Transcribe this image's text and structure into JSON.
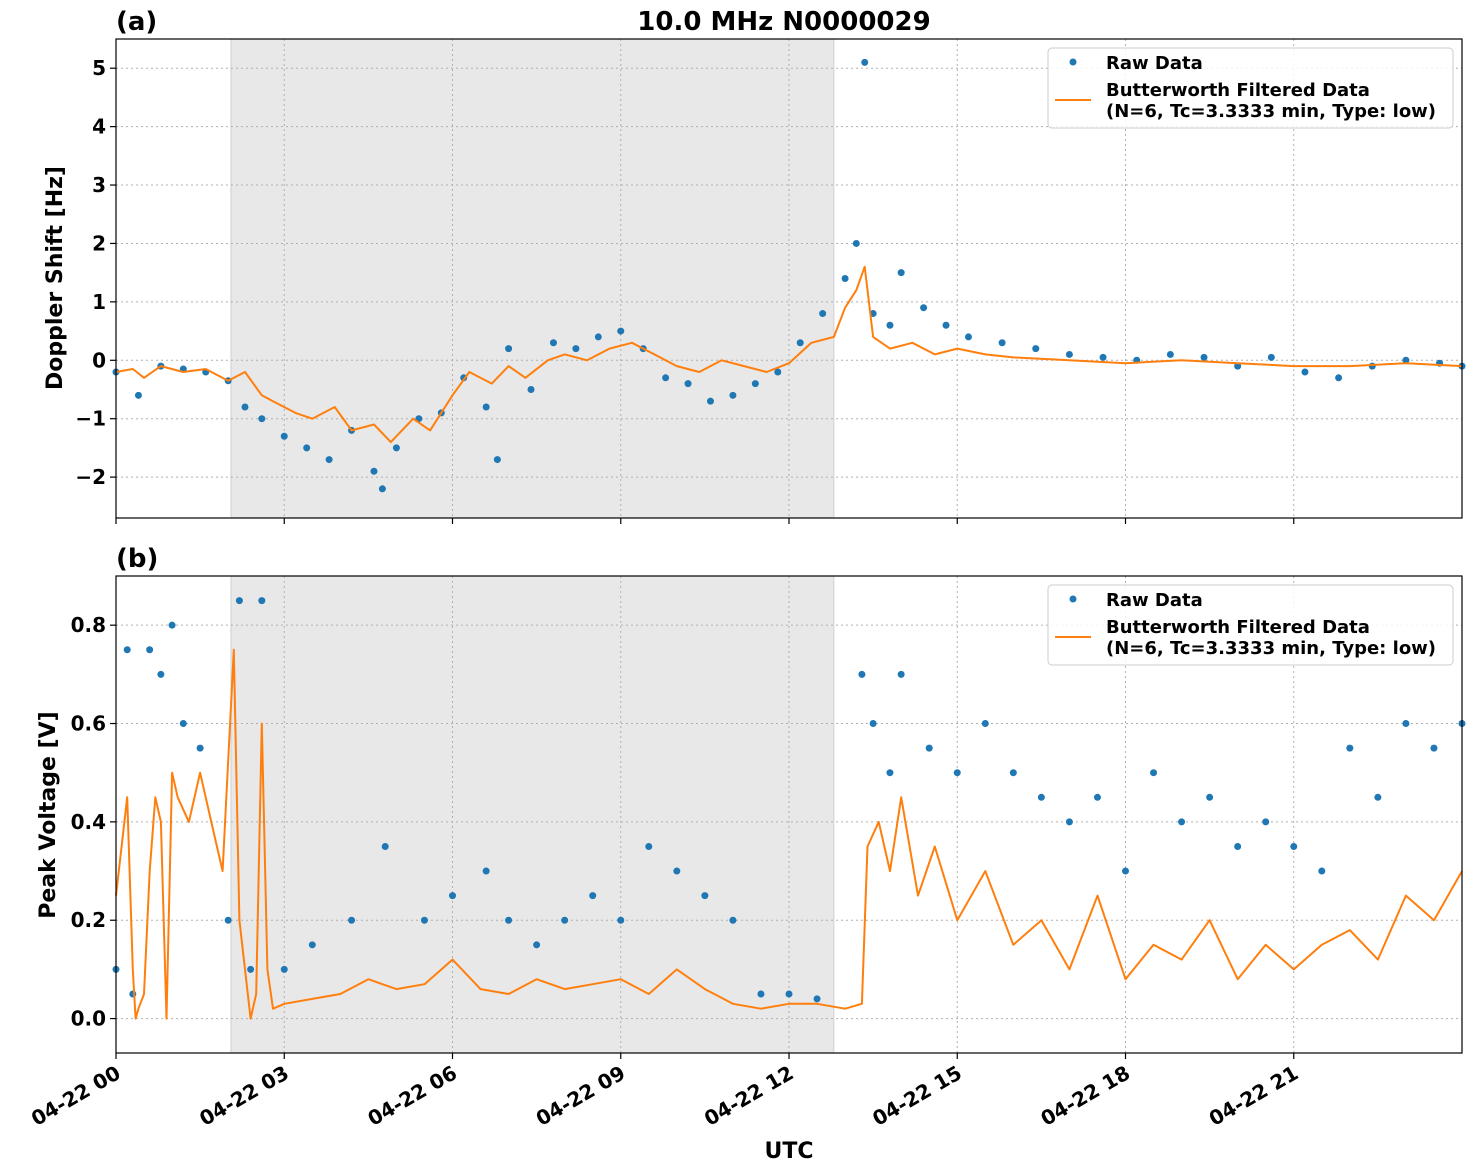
{
  "figure": {
    "title": "10.0 MHz N0000029",
    "xlabel": "UTC",
    "x_tick_labels": [
      "04-22 00",
      "04-22 03",
      "04-22 06",
      "04-22 09",
      "04-22 12",
      "04-22 15",
      "04-22 18",
      "04-22 21"
    ]
  },
  "colors": {
    "raw": "#1f77b4",
    "filtered": "#ff7f0e",
    "shade": "#e8e8e8",
    "grid": "#b0b0b0"
  },
  "chart_data": [
    {
      "type": "scatter",
      "panel_label": "(a)",
      "ylabel": "Doppler Shift [Hz]",
      "xlim_hours": [
        0,
        24
      ],
      "ylim": [
        -2.7,
        5.5
      ],
      "x_ticks_hours": [
        0,
        3,
        6,
        9,
        12,
        15,
        18,
        21
      ],
      "y_ticks": [
        -2,
        -1,
        0,
        1,
        2,
        3,
        4,
        5
      ],
      "y_tick_labels": [
        "−2",
        "−1",
        "0",
        "1",
        "2",
        "3",
        "4",
        "5"
      ],
      "grid": true,
      "shaded_region_hours": [
        2.05,
        12.8
      ],
      "legend": {
        "position": "top-right",
        "raw_label": "Raw Data",
        "filtered_label_line1": "Butterworth Filtered Data",
        "filtered_label_line2": "(N=6, Tc=3.3333 min, Type: low)"
      },
      "series": [
        {
          "name": "Butterworth Filtered Data",
          "kind": "line",
          "x": [
            0,
            0.3,
            0.5,
            0.8,
            1.2,
            1.6,
            2.0,
            2.3,
            2.6,
            2.8,
            3.2,
            3.5,
            3.9,
            4.2,
            4.6,
            4.9,
            5.3,
            5.6,
            6.0,
            6.3,
            6.7,
            7.0,
            7.3,
            7.7,
            8.0,
            8.4,
            8.8,
            9.2,
            9.6,
            10.0,
            10.4,
            10.8,
            11.2,
            11.6,
            12.0,
            12.4,
            12.8,
            13.0,
            13.2,
            13.35,
            13.5,
            13.8,
            14.2,
            14.6,
            15.0,
            15.5,
            16.0,
            17.0,
            18.0,
            19.0,
            20.0,
            21.0,
            22.0,
            23.0,
            24.0
          ],
          "y": [
            -0.2,
            -0.15,
            -0.3,
            -0.1,
            -0.2,
            -0.15,
            -0.35,
            -0.2,
            -0.6,
            -0.7,
            -0.9,
            -1.0,
            -0.8,
            -1.2,
            -1.1,
            -1.4,
            -1.0,
            -1.2,
            -0.6,
            -0.2,
            -0.4,
            -0.1,
            -0.3,
            0.0,
            0.1,
            0.0,
            0.2,
            0.3,
            0.1,
            -0.1,
            -0.2,
            0.0,
            -0.1,
            -0.2,
            -0.05,
            0.3,
            0.4,
            0.9,
            1.2,
            1.6,
            0.4,
            0.2,
            0.3,
            0.1,
            0.2,
            0.1,
            0.05,
            0.0,
            -0.05,
            0.0,
            -0.05,
            -0.1,
            -0.1,
            -0.05,
            -0.1
          ]
        },
        {
          "name": "Raw Data",
          "kind": "points",
          "x": [
            0,
            0.4,
            0.8,
            1.2,
            1.6,
            2.0,
            2.3,
            2.6,
            3.0,
            3.4,
            3.8,
            4.2,
            4.6,
            4.75,
            5.0,
            5.4,
            5.8,
            6.2,
            6.6,
            6.8,
            7.0,
            7.4,
            7.8,
            8.2,
            8.6,
            9.0,
            9.4,
            9.8,
            10.2,
            10.6,
            11.0,
            11.4,
            11.8,
            12.2,
            12.6,
            13.0,
            13.2,
            13.35,
            13.5,
            13.8,
            14.0,
            14.4,
            14.8,
            15.2,
            15.8,
            16.4,
            17.0,
            17.6,
            18.2,
            18.8,
            19.4,
            20.0,
            20.6,
            21.2,
            21.8,
            22.4,
            23.0,
            23.6,
            24.0
          ],
          "y": [
            -0.2,
            -0.6,
            -0.1,
            -0.15,
            -0.2,
            -0.35,
            -0.8,
            -1.0,
            -1.3,
            -1.5,
            -1.7,
            -1.2,
            -1.9,
            -2.2,
            -1.5,
            -1.0,
            -0.9,
            -0.3,
            -0.8,
            -1.7,
            0.2,
            -0.5,
            0.3,
            0.2,
            0.4,
            0.5,
            0.2,
            -0.3,
            -0.4,
            -0.7,
            -0.6,
            -0.4,
            -0.2,
            0.3,
            0.8,
            1.4,
            2.0,
            5.1,
            0.8,
            0.6,
            1.5,
            0.9,
            0.6,
            0.4,
            0.3,
            0.2,
            0.1,
            0.05,
            0.0,
            0.1,
            0.05,
            -0.1,
            0.05,
            -0.2,
            -0.3,
            -0.1,
            0.0,
            -0.05,
            -0.1
          ]
        }
      ]
    },
    {
      "type": "scatter",
      "panel_label": "(b)",
      "ylabel": "Peak Voltage [V]",
      "xlim_hours": [
        0,
        24
      ],
      "ylim": [
        -0.07,
        0.9
      ],
      "x_ticks_hours": [
        0,
        3,
        6,
        9,
        12,
        15,
        18,
        21
      ],
      "y_ticks": [
        0.0,
        0.2,
        0.4,
        0.6,
        0.8
      ],
      "y_tick_labels": [
        "0.0",
        "0.2",
        "0.4",
        "0.6",
        "0.8"
      ],
      "grid": true,
      "shaded_region_hours": [
        2.05,
        12.8
      ],
      "legend": {
        "position": "top-right",
        "raw_label": "Raw Data",
        "filtered_label_line1": "Butterworth Filtered Data",
        "filtered_label_line2": "(N=6, Tc=3.3333 min, Type: low)"
      },
      "series": [
        {
          "name": "Butterworth Filtered Data",
          "kind": "line",
          "x": [
            0,
            0.1,
            0.2,
            0.3,
            0.35,
            0.4,
            0.5,
            0.6,
            0.7,
            0.8,
            0.9,
            1.0,
            1.1,
            1.3,
            1.5,
            1.7,
            1.9,
            2.1,
            2.2,
            2.4,
            2.5,
            2.6,
            2.7,
            2.8,
            3.0,
            3.5,
            4.0,
            4.5,
            5.0,
            5.5,
            6.0,
            6.5,
            7.0,
            7.5,
            8.0,
            8.5,
            9.0,
            9.5,
            10.0,
            10.5,
            11.0,
            11.5,
            12.0,
            12.5,
            13.0,
            13.3,
            13.4,
            13.6,
            13.8,
            14.0,
            14.3,
            14.6,
            15.0,
            15.5,
            16.0,
            16.5,
            17.0,
            17.5,
            18.0,
            18.5,
            19.0,
            19.5,
            20.0,
            20.5,
            21.0,
            21.5,
            22.0,
            22.5,
            23.0,
            23.5,
            24.0
          ],
          "y": [
            0.25,
            0.35,
            0.45,
            0.1,
            0.0,
            0.02,
            0.05,
            0.3,
            0.45,
            0.4,
            0.0,
            0.5,
            0.45,
            0.4,
            0.5,
            0.4,
            0.3,
            0.75,
            0.2,
            0.0,
            0.05,
            0.6,
            0.1,
            0.02,
            0.03,
            0.04,
            0.05,
            0.08,
            0.06,
            0.07,
            0.12,
            0.06,
            0.05,
            0.08,
            0.06,
            0.07,
            0.08,
            0.05,
            0.1,
            0.06,
            0.03,
            0.02,
            0.03,
            0.03,
            0.02,
            0.03,
            0.35,
            0.4,
            0.3,
            0.45,
            0.25,
            0.35,
            0.2,
            0.3,
            0.15,
            0.2,
            0.1,
            0.25,
            0.08,
            0.15,
            0.12,
            0.2,
            0.08,
            0.15,
            0.1,
            0.15,
            0.18,
            0.12,
            0.25,
            0.2,
            0.3
          ]
        },
        {
          "name": "Raw Data",
          "kind": "points",
          "x": [
            0,
            0.2,
            0.3,
            0.6,
            0.8,
            1.0,
            1.2,
            1.5,
            2.0,
            2.2,
            2.4,
            2.6,
            3.0,
            3.5,
            4.2,
            4.8,
            5.5,
            6.0,
            6.6,
            7.0,
            7.5,
            8.0,
            8.5,
            9.0,
            9.5,
            10.0,
            10.5,
            11.0,
            11.5,
            12.0,
            12.5,
            13.3,
            13.5,
            13.8,
            14.0,
            14.5,
            15.0,
            15.5,
            16.0,
            16.5,
            17.0,
            17.5,
            18.0,
            18.5,
            19.0,
            19.5,
            20.0,
            20.5,
            21.0,
            21.5,
            22.0,
            22.5,
            23.0,
            23.5,
            24.0
          ],
          "y": [
            0.1,
            0.75,
            0.05,
            0.75,
            0.7,
            0.8,
            0.6,
            0.55,
            0.2,
            0.85,
            0.1,
            0.85,
            0.1,
            0.15,
            0.2,
            0.35,
            0.2,
            0.25,
            0.3,
            0.2,
            0.15,
            0.2,
            0.25,
            0.2,
            0.35,
            0.3,
            0.25,
            0.2,
            0.05,
            0.05,
            0.04,
            0.7,
            0.6,
            0.5,
            0.7,
            0.55,
            0.5,
            0.6,
            0.5,
            0.45,
            0.4,
            0.45,
            0.3,
            0.5,
            0.4,
            0.45,
            0.35,
            0.4,
            0.35,
            0.3,
            0.55,
            0.45,
            0.6,
            0.55,
            0.6
          ]
        }
      ]
    }
  ]
}
